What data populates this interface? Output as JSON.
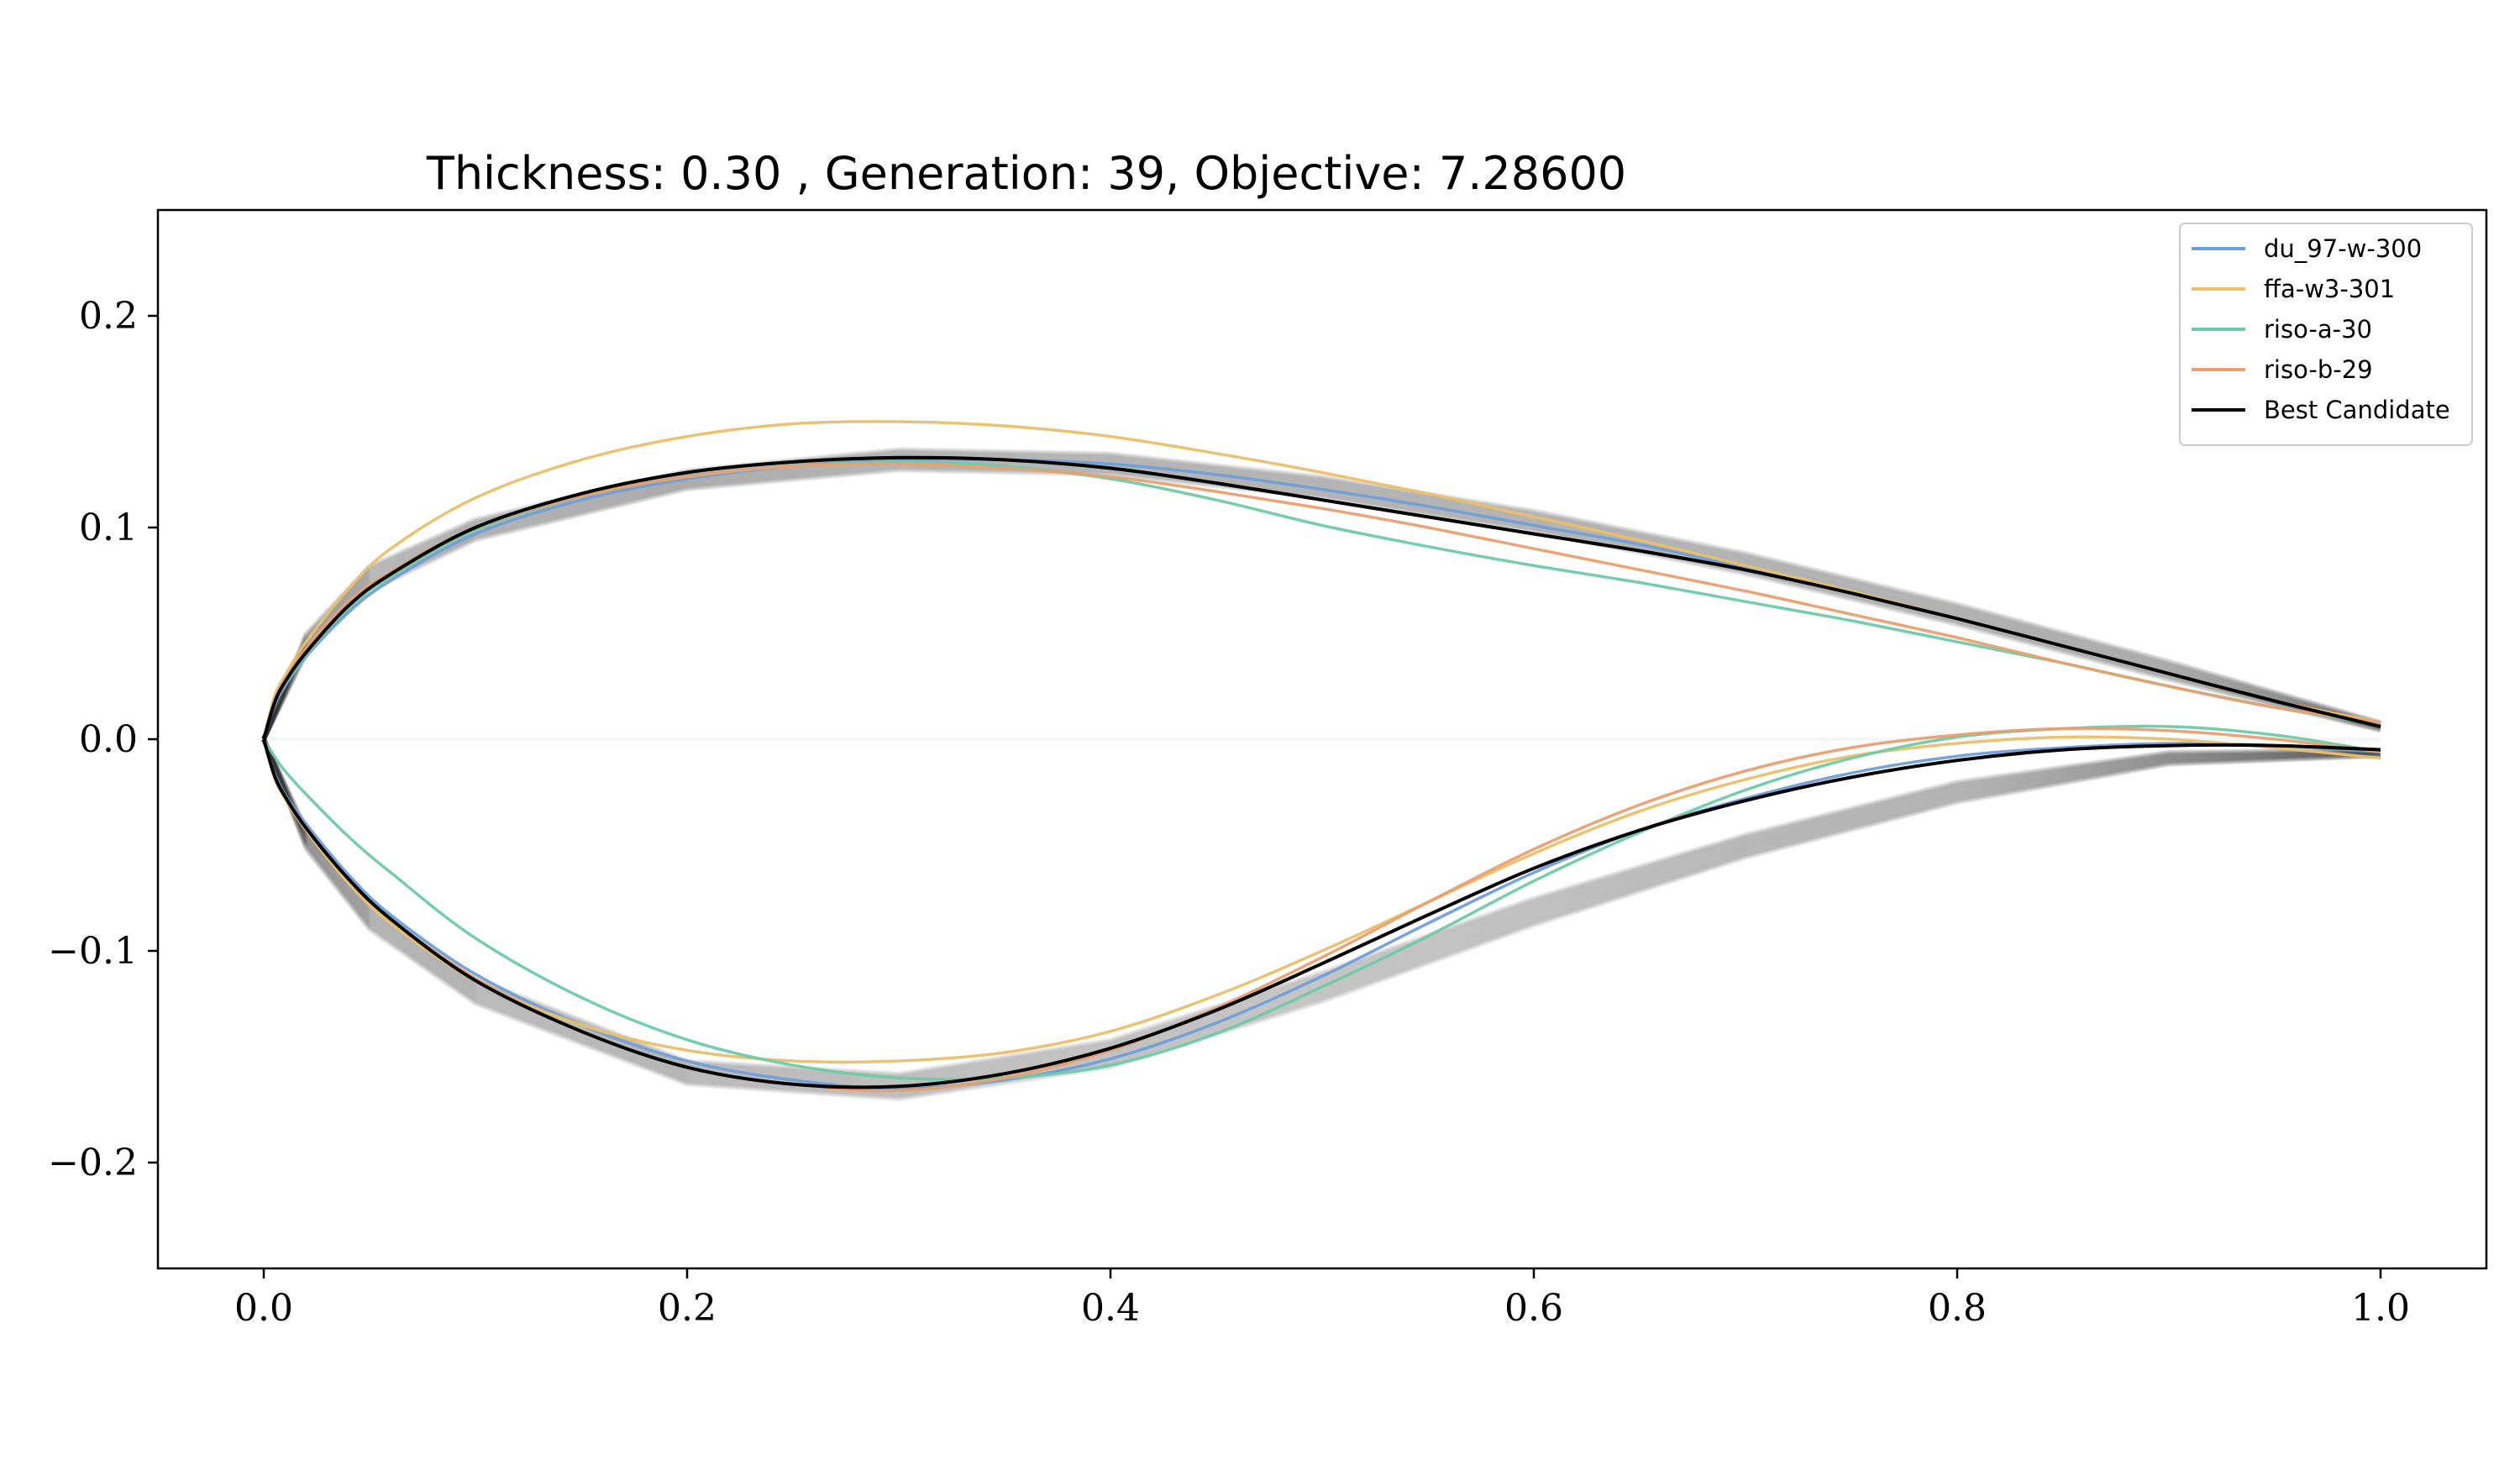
{
  "chart_data": {
    "type": "line",
    "title": "Thickness: 0.30 , Generation: 39, Objective: 7.28600",
    "xlabel": "",
    "ylabel": "",
    "xlim": [
      -0.05,
      1.05
    ],
    "ylim": [
      -0.25,
      0.25
    ],
    "xticks": [
      0.0,
      0.2,
      0.4,
      0.6,
      0.8,
      1.0
    ],
    "xtick_labels": [
      "0.0",
      "0.2",
      "0.4",
      "0.6",
      "0.8",
      "1.0"
    ],
    "yticks": [
      -0.2,
      -0.1,
      0.0,
      0.1,
      0.2
    ],
    "ytick_labels": [
      "−0.2",
      "−0.1",
      "0.0",
      "0.1",
      "0.2"
    ],
    "grid": false,
    "legend_position": "top-right",
    "background_population": {
      "description": "faint grey candidate airfoils from the optimization population",
      "color": "#000000",
      "opacity": 0.03,
      "upper_band": {
        "x": [
          0.0,
          0.02,
          0.05,
          0.1,
          0.2,
          0.3,
          0.4,
          0.5,
          0.6,
          0.7,
          0.8,
          0.9,
          1.0
        ],
        "y_max": [
          0.0,
          0.05,
          0.082,
          0.104,
          0.127,
          0.137,
          0.135,
          0.124,
          0.108,
          0.088,
          0.064,
          0.037,
          0.008
        ],
        "y_min": [
          0.0,
          0.04,
          0.07,
          0.094,
          0.118,
          0.127,
          0.125,
          0.114,
          0.098,
          0.078,
          0.054,
          0.028,
          0.004
        ]
      },
      "lower_band": {
        "x": [
          0.0,
          0.02,
          0.05,
          0.1,
          0.2,
          0.3,
          0.4,
          0.5,
          0.6,
          0.7,
          0.8,
          0.9,
          1.0
        ],
        "y_max": [
          0.0,
          -0.042,
          -0.078,
          -0.113,
          -0.152,
          -0.158,
          -0.142,
          -0.11,
          -0.075,
          -0.045,
          -0.02,
          -0.006,
          -0.005
        ],
        "y_min": [
          0.0,
          -0.052,
          -0.09,
          -0.125,
          -0.163,
          -0.17,
          -0.155,
          -0.124,
          -0.088,
          -0.056,
          -0.03,
          -0.012,
          -0.008
        ]
      }
    },
    "series": [
      {
        "name": "du_97-w-300",
        "color": "#6f9fd8",
        "x": [
          0.0,
          0.005,
          0.01,
          0.02,
          0.04,
          0.06,
          0.1,
          0.15,
          0.2,
          0.25,
          0.3,
          0.35,
          0.4,
          0.45,
          0.5,
          0.55,
          0.6,
          0.65,
          0.7,
          0.75,
          0.8,
          0.85,
          0.9,
          0.95,
          1.0
        ],
        "upper": [
          0.0,
          0.016,
          0.025,
          0.039,
          0.06,
          0.075,
          0.097,
          0.113,
          0.123,
          0.129,
          0.132,
          0.132,
          0.13,
          0.125,
          0.118,
          0.11,
          0.101,
          0.092,
          0.081,
          0.07,
          0.057,
          0.044,
          0.031,
          0.018,
          0.006
        ],
        "lower": [
          0.0,
          -0.016,
          -0.026,
          -0.04,
          -0.064,
          -0.083,
          -0.111,
          -0.135,
          -0.152,
          -0.161,
          -0.165,
          -0.161,
          -0.151,
          -0.134,
          -0.112,
          -0.087,
          -0.063,
          -0.043,
          -0.028,
          -0.016,
          -0.008,
          -0.004,
          -0.002,
          -0.003,
          -0.006
        ]
      },
      {
        "name": "ffa-w3-301",
        "color": "#e8c06a",
        "x": [
          0.0,
          0.005,
          0.01,
          0.02,
          0.04,
          0.06,
          0.1,
          0.15,
          0.2,
          0.25,
          0.3,
          0.35,
          0.4,
          0.45,
          0.5,
          0.55,
          0.6,
          0.65,
          0.7,
          0.75,
          0.8,
          0.85,
          0.9,
          0.95,
          1.0
        ],
        "upper": [
          0.0,
          0.02,
          0.03,
          0.046,
          0.071,
          0.09,
          0.114,
          0.132,
          0.143,
          0.149,
          0.15,
          0.148,
          0.143,
          0.135,
          0.126,
          0.116,
          0.105,
          0.094,
          0.082,
          0.07,
          0.057,
          0.044,
          0.031,
          0.018,
          0.008
        ],
        "lower": [
          0.0,
          -0.018,
          -0.028,
          -0.043,
          -0.068,
          -0.087,
          -0.114,
          -0.135,
          -0.147,
          -0.152,
          -0.152,
          -0.148,
          -0.138,
          -0.121,
          -0.1,
          -0.077,
          -0.054,
          -0.034,
          -0.019,
          -0.008,
          -0.002,
          0.001,
          0.0,
          -0.004,
          -0.009
        ]
      },
      {
        "name": "riso-a-30",
        "color": "#6fcaa8",
        "x": [
          0.0,
          0.005,
          0.01,
          0.02,
          0.04,
          0.06,
          0.1,
          0.15,
          0.2,
          0.25,
          0.3,
          0.35,
          0.4,
          0.45,
          0.5,
          0.55,
          0.6,
          0.65,
          0.7,
          0.75,
          0.8,
          0.85,
          0.9,
          0.95,
          1.0
        ],
        "upper": [
          0.0,
          0.017,
          0.026,
          0.04,
          0.062,
          0.077,
          0.099,
          0.115,
          0.124,
          0.129,
          0.131,
          0.129,
          0.123,
          0.113,
          0.101,
          0.091,
          0.082,
          0.074,
          0.065,
          0.056,
          0.046,
          0.036,
          0.025,
          0.015,
          0.007
        ],
        "lower": [
          0.0,
          -0.008,
          -0.015,
          -0.026,
          -0.046,
          -0.063,
          -0.094,
          -0.122,
          -0.142,
          -0.154,
          -0.16,
          -0.16,
          -0.154,
          -0.139,
          -0.117,
          -0.093,
          -0.067,
          -0.044,
          -0.024,
          -0.009,
          0.001,
          0.005,
          0.006,
          0.002,
          -0.006
        ]
      },
      {
        "name": "riso-b-29",
        "color": "#e8a070",
        "x": [
          0.0,
          0.005,
          0.01,
          0.02,
          0.04,
          0.06,
          0.1,
          0.15,
          0.2,
          0.25,
          0.3,
          0.35,
          0.4,
          0.45,
          0.5,
          0.55,
          0.6,
          0.65,
          0.7,
          0.75,
          0.8,
          0.85,
          0.9,
          0.95,
          1.0
        ],
        "upper": [
          0.0,
          0.018,
          0.028,
          0.043,
          0.065,
          0.079,
          0.1,
          0.115,
          0.124,
          0.129,
          0.13,
          0.128,
          0.124,
          0.117,
          0.109,
          0.1,
          0.09,
          0.08,
          0.07,
          0.059,
          0.048,
          0.036,
          0.025,
          0.015,
          0.008
        ],
        "lower": [
          0.0,
          -0.017,
          -0.027,
          -0.042,
          -0.066,
          -0.085,
          -0.113,
          -0.138,
          -0.155,
          -0.163,
          -0.166,
          -0.16,
          -0.147,
          -0.127,
          -0.103,
          -0.077,
          -0.052,
          -0.031,
          -0.015,
          -0.004,
          0.002,
          0.005,
          0.004,
          0.0,
          -0.006
        ]
      },
      {
        "name": "Best Candidate",
        "color": "#000000",
        "x": [
          0.0,
          0.005,
          0.01,
          0.02,
          0.04,
          0.06,
          0.1,
          0.15,
          0.2,
          0.25,
          0.3,
          0.35,
          0.4,
          0.45,
          0.5,
          0.55,
          0.6,
          0.65,
          0.7,
          0.75,
          0.8,
          0.85,
          0.9,
          0.95,
          1.0
        ],
        "upper": [
          0.0,
          0.017,
          0.027,
          0.041,
          0.063,
          0.078,
          0.1,
          0.116,
          0.126,
          0.131,
          0.133,
          0.132,
          0.128,
          0.121,
          0.113,
          0.105,
          0.097,
          0.089,
          0.08,
          0.069,
          0.057,
          0.044,
          0.031,
          0.018,
          0.006
        ],
        "lower": [
          0.0,
          -0.017,
          -0.027,
          -0.042,
          -0.066,
          -0.085,
          -0.114,
          -0.138,
          -0.155,
          -0.163,
          -0.164,
          -0.158,
          -0.146,
          -0.128,
          -0.106,
          -0.083,
          -0.061,
          -0.043,
          -0.029,
          -0.018,
          -0.01,
          -0.005,
          -0.003,
          -0.003,
          -0.005
        ]
      }
    ]
  }
}
